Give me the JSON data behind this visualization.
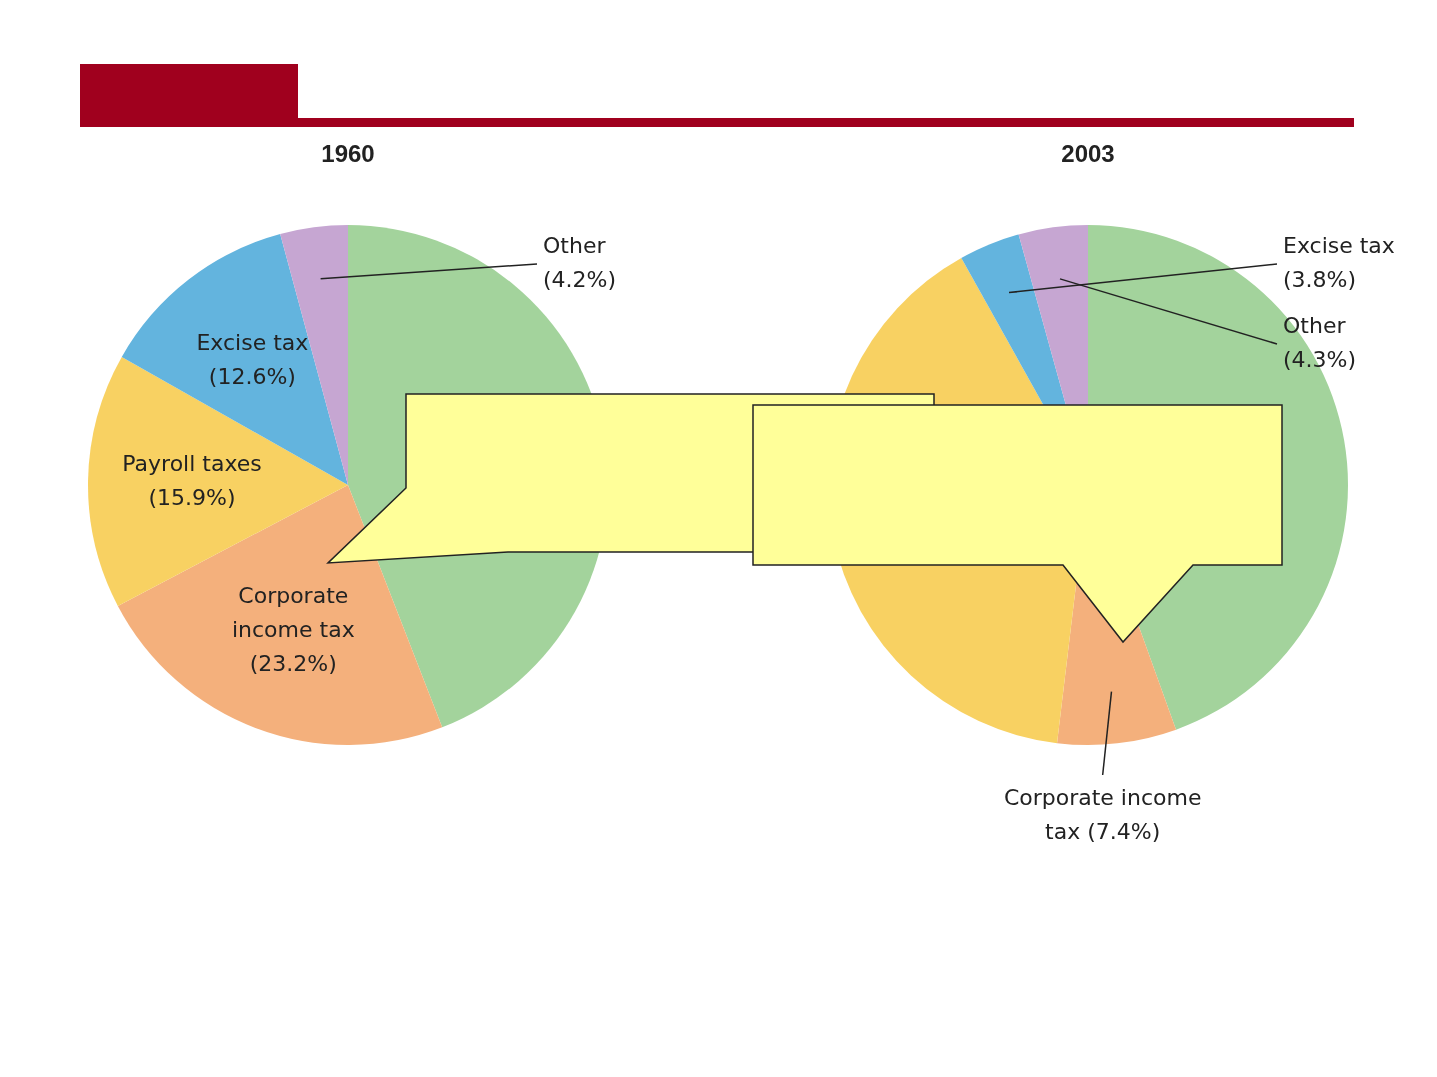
{
  "chart_data": [
    {
      "type": "pie",
      "title": "1960",
      "categories": [
        null,
        "Corporate income tax",
        "Payroll taxes",
        "Excise tax",
        "Other"
      ],
      "values": [
        44.1,
        23.2,
        15.9,
        12.6,
        4.2
      ],
      "value_labels": [
        null,
        "(23.2%)",
        "(15.9%)",
        "(12.6%)",
        "(4.2%)"
      ],
      "colors": [
        "#a3d39c",
        "#f4b07c",
        "#f8d162",
        "#63b4de",
        "#c6a6d2"
      ]
    },
    {
      "type": "pie",
      "title": "2003",
      "categories": [
        null,
        "Corporate income tax",
        null,
        "Excise tax",
        "Other"
      ],
      "values": [
        44.5,
        7.4,
        40.0,
        3.8,
        4.3
      ],
      "value_labels": [
        null,
        "(7.4%)",
        null,
        "(3.8%)",
        "(4.3%)"
      ],
      "colors": [
        "#a3d39c",
        "#f4b07c",
        "#f8d162",
        "#63b4de",
        "#c6a6d2"
      ]
    }
  ]
}
